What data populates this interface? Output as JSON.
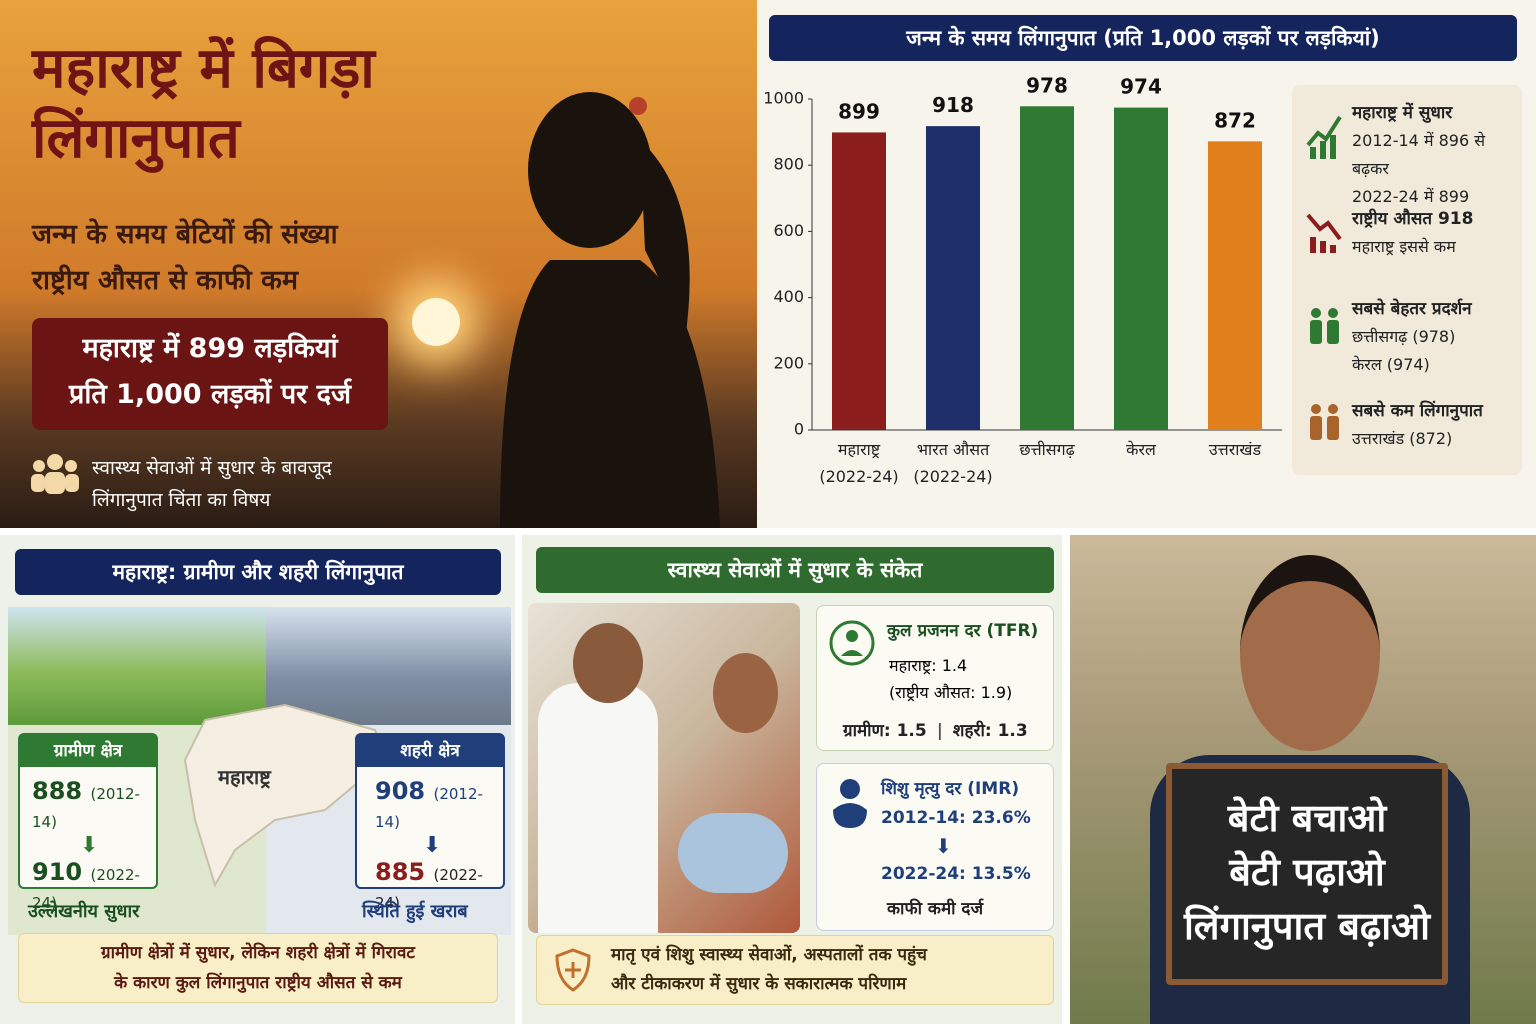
{
  "hero": {
    "title_lines": [
      "महाराष्ट्र में बिगड़ा",
      "लिंगानुपात"
    ],
    "subtitle_lines": [
      "जन्म के समय बेटियों की संख्या",
      "राष्ट्रीय औसत से काफी कम"
    ],
    "highlight_lines": [
      "महाराष्ट्र में 899 लड़कियां",
      "प्रति 1,000 लड़कों पर दर्ज"
    ],
    "note_lines": [
      "स्वास्थ्य सेवाओं में सुधार के बावजूद",
      "लिंगानुपात चिंता का विषय"
    ]
  },
  "chart_data": {
    "type": "bar",
    "title": "जन्म के समय लिंगानुपात (प्रति 1,000 लड़कों पर लड़कियां)",
    "categories": [
      "महाराष्ट्र (2022-24)",
      "भारत औसत (2022-24)",
      "छत्तीसगढ़",
      "केरल",
      "उत्तराखंड"
    ],
    "values": [
      899,
      918,
      978,
      974,
      872
    ],
    "colors": [
      "#8b1d1d",
      "#1f2f6b",
      "#2f7a32",
      "#2f7a32",
      "#e07f1c"
    ],
    "ylim": [
      0,
      1000
    ],
    "yticks": [
      0,
      200,
      400,
      600,
      800,
      1000
    ]
  },
  "insights": [
    {
      "title": "महाराष्ट्र में सुधार",
      "lines": [
        "2012-14 में 896 से बढ़कर",
        "2022-24 में 899"
      ]
    },
    {
      "title": "राष्ट्रीय औसत 918",
      "lines": [
        "महाराष्ट्र इससे कम"
      ]
    },
    {
      "title": "सबसे बेहतर प्रदर्शन",
      "lines": [
        "छत्तीसगढ़ (978)",
        "केरल (974)"
      ]
    },
    {
      "title": "सबसे कम लिंगानुपात",
      "lines": [
        "उत्तराखंड (872)"
      ]
    }
  ],
  "rural_urban": {
    "title": "महाराष्ट्र: ग्रामीण और शहरी लिंगानुपात",
    "map_label": "महाराष्ट्र",
    "rural": {
      "label": "ग्रामीण क्षेत्र",
      "before": {
        "value": 888,
        "period": "(2012-14)"
      },
      "after": {
        "value": 910,
        "period": "(2022-24)"
      },
      "verdict": "उल्लेखनीय सुधार"
    },
    "urban": {
      "label": "शहरी क्षेत्र",
      "before": {
        "value": 908,
        "period": "(2012-14)"
      },
      "after": {
        "value": 885,
        "period": "(2022-24)"
      },
      "verdict": "स्थिति हुई खराब"
    },
    "footer_lines": [
      "ग्रामीण क्षेत्रों में सुधार, लेकिन शहरी क्षेत्रों में गिरावट",
      "के कारण कुल लिंगानुपात राष्ट्रीय औसत से कम"
    ]
  },
  "health": {
    "title": "स्वास्थ्य सेवाओं में सुधार के संकेत",
    "tfr": {
      "title": "कुल प्रजनन दर (TFR)",
      "lines": [
        "महाराष्ट्र: 1.4",
        "(राष्ट्रीय औसत: 1.9)"
      ],
      "rural": "ग्रामीण: 1.5",
      "urban": "शहरी: 1.3"
    },
    "imr": {
      "title": "शिशु मृत्यु दर (IMR)",
      "before": "2012-14: 23.6%",
      "after": "2022-24: 13.5%",
      "note": "काफी कमी दर्ज"
    },
    "footer_lines": [
      "मातृ एवं शिशु स्वास्थ्य सेवाओं, अस्पतालों तक पहुंच",
      "और टीकाकरण में सुधार के सकारात्मक परिणाम"
    ]
  },
  "poster": {
    "sign_lines": [
      "बेटी बचाओ",
      "बेटी पढ़ाओ",
      "लिंगानुपात बढ़ाओ"
    ]
  }
}
